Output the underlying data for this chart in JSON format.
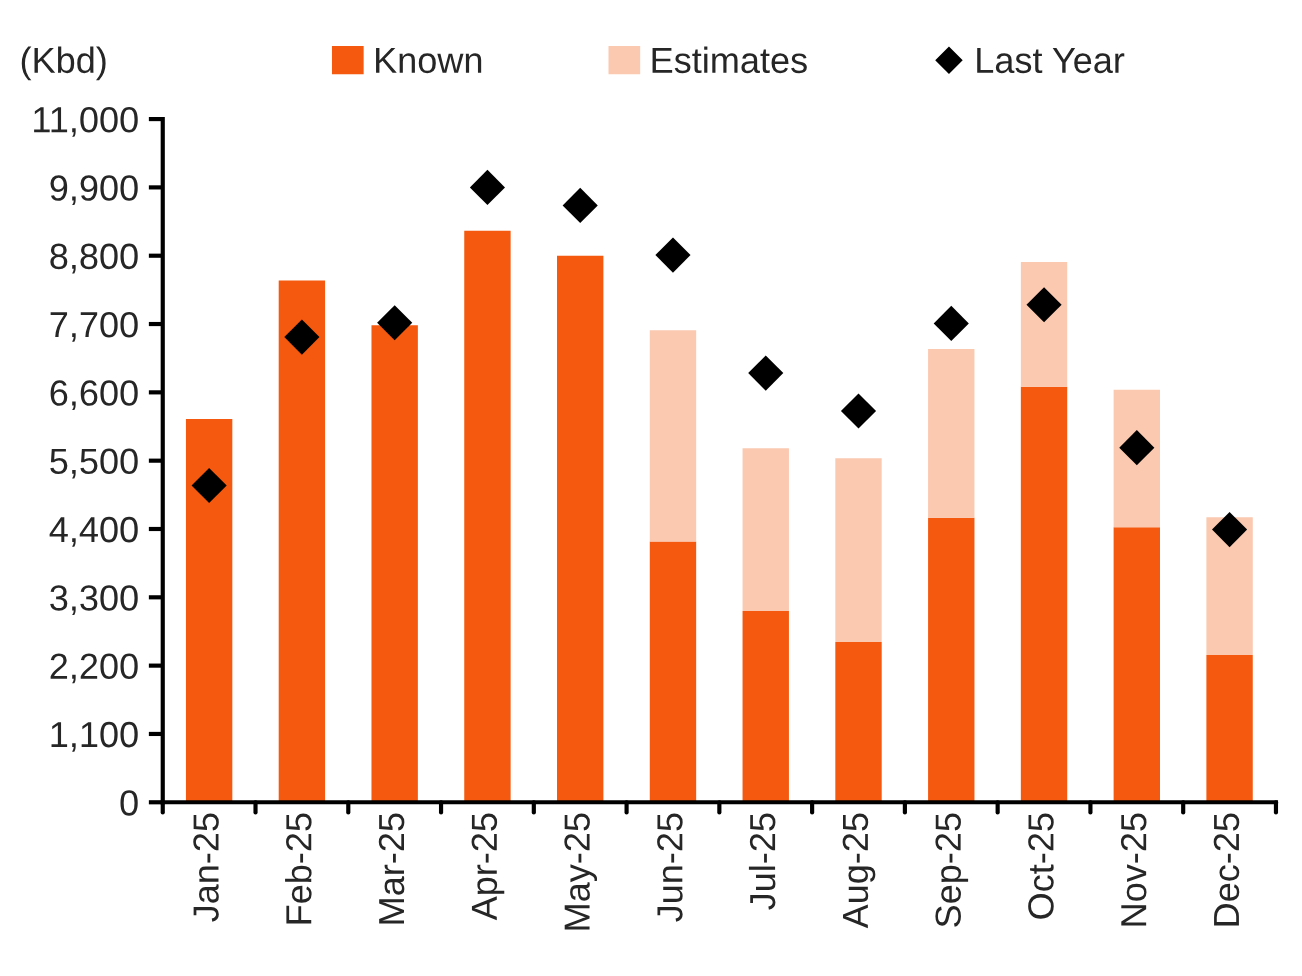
{
  "chart_data": {
    "type": "bar",
    "stacked": true,
    "ylabel": "(Kbd)",
    "categories": [
      "Jan-25",
      "Feb-25",
      "Mar-25",
      "Apr-25",
      "May-25",
      "Jun-25",
      "Jul-25",
      "Aug-25",
      "Sep-25",
      "Oct-25",
      "Nov-25",
      "Dec-25"
    ],
    "series": [
      {
        "name": "Known",
        "color": "#f4590f",
        "values": [
          6170,
          8400,
          7680,
          9200,
          8800,
          4200,
          3080,
          2580,
          4580,
          6690,
          4430,
          2370
        ]
      },
      {
        "name": "Estimates",
        "color": "#fbc9b0",
        "values": [
          null,
          null,
          null,
          null,
          null,
          3400,
          2620,
          2960,
          2720,
          2010,
          2210,
          2220
        ]
      },
      {
        "name": "Last Year",
        "type": "scatter",
        "color": "#000000",
        "marker": "diamond",
        "values": [
          5100,
          7490,
          7720,
          9900,
          9610,
          8810,
          6910,
          6300,
          7710,
          8010,
          5710,
          4390
        ]
      }
    ],
    "ylim": [
      0,
      11000
    ],
    "yticks": [
      {
        "value": 0,
        "label": "0"
      },
      {
        "value": 1100,
        "label": "1,100"
      },
      {
        "value": 2200,
        "label": "2,200"
      },
      {
        "value": 3300,
        "label": "3,300"
      },
      {
        "value": 4400,
        "label": "4,400"
      },
      {
        "value": 5500,
        "label": "5,500"
      },
      {
        "value": 6600,
        "label": "6,600"
      },
      {
        "value": 7700,
        "label": "7,700"
      },
      {
        "value": 8800,
        "label": "8,800"
      },
      {
        "value": 9900,
        "label": "9,900"
      },
      {
        "value": 11000,
        "label": "11,000"
      }
    ],
    "grid": false,
    "legend": "top"
  }
}
